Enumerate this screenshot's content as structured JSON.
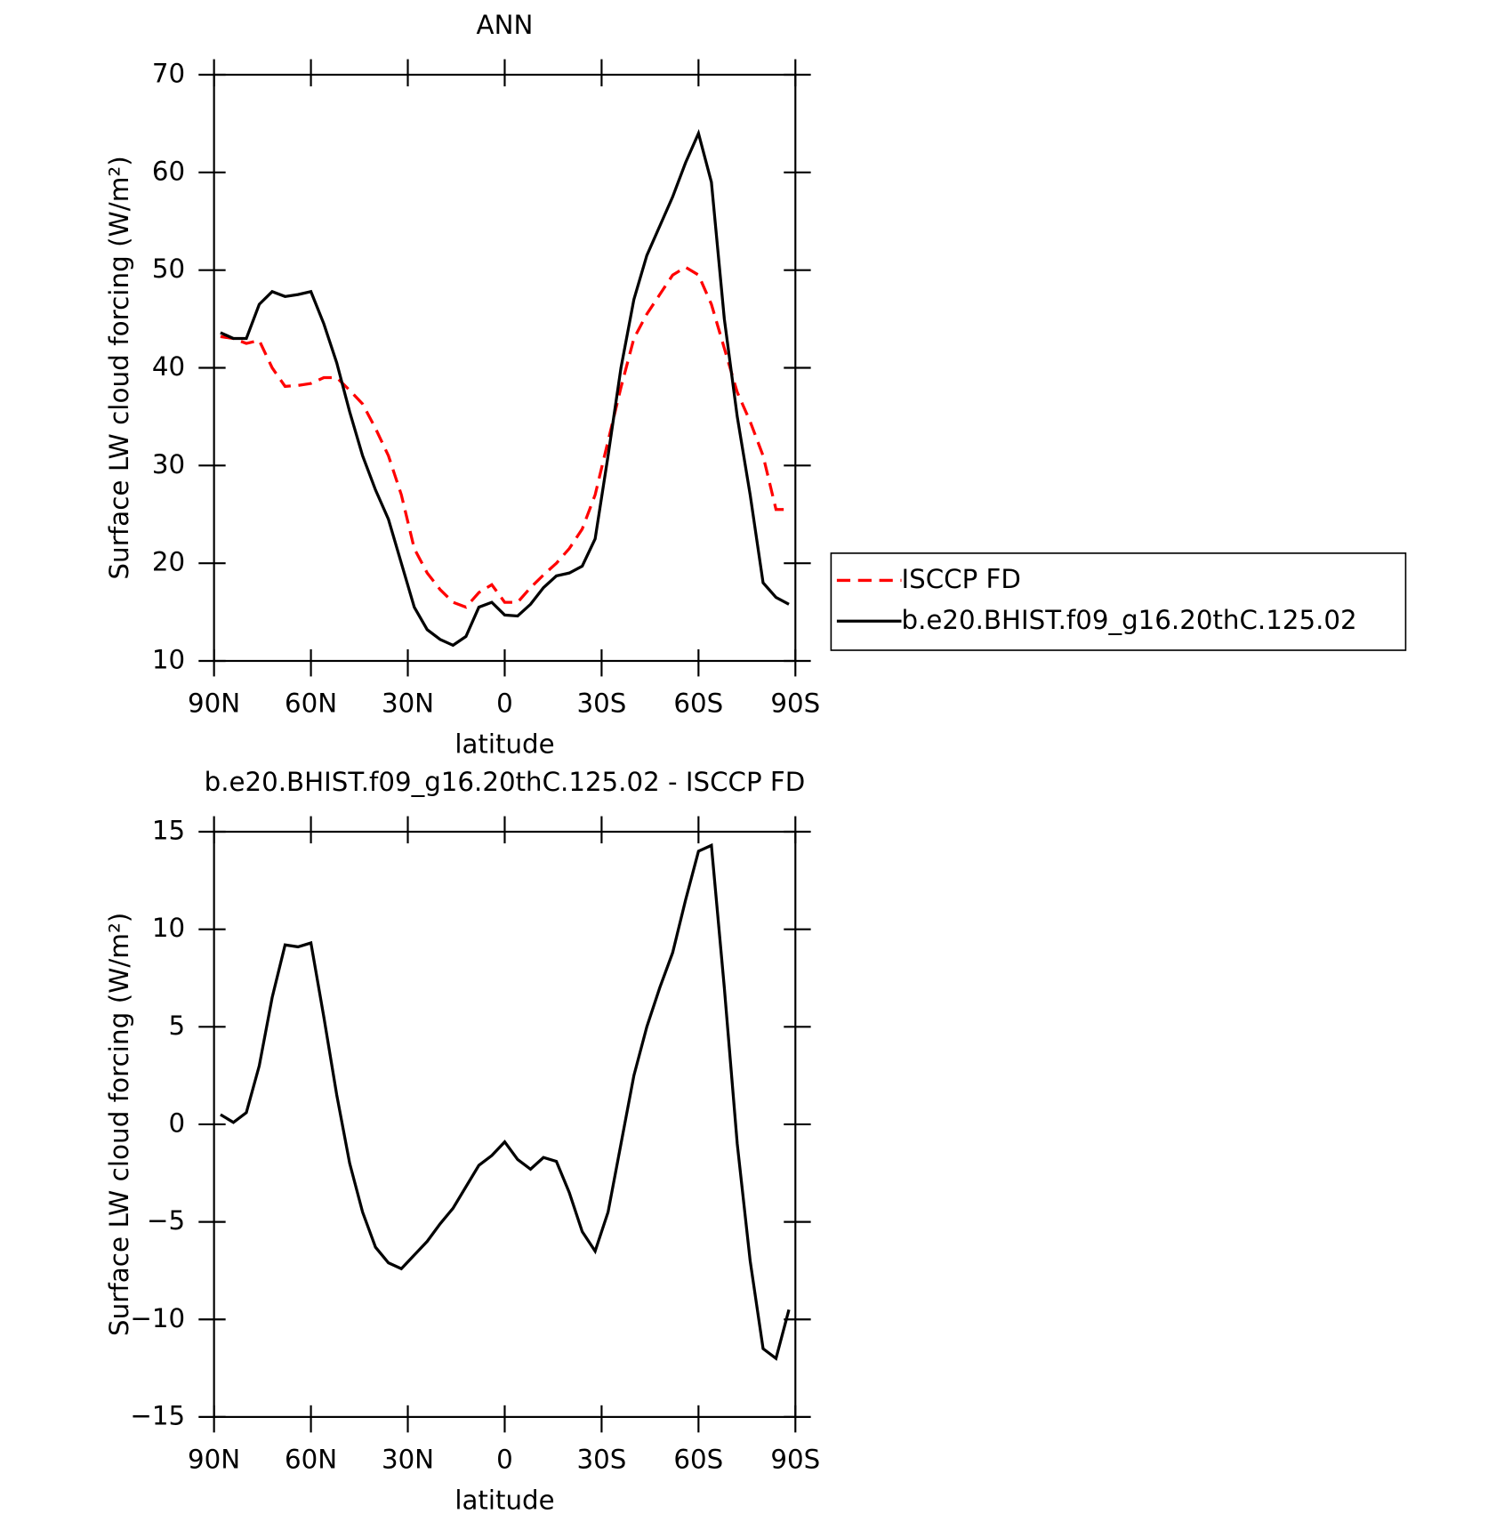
{
  "chart_data": [
    {
      "type": "line",
      "title": "ANN",
      "xlabel": "latitude",
      "ylabel": "Surface LW cloud forcing (W/m²)",
      "xlim": [
        90,
        -90
      ],
      "ylim": [
        10,
        70
      ],
      "xticks": [
        {
          "value": 90,
          "label": "90N"
        },
        {
          "value": 60,
          "label": "60N"
        },
        {
          "value": 30,
          "label": "30N"
        },
        0,
        {
          "value": -30,
          "label": "30S"
        },
        {
          "value": -60,
          "label": "60S"
        },
        {
          "value": -90,
          "label": "90S"
        }
      ],
      "yticks": [
        10,
        20,
        30,
        40,
        50,
        60,
        70
      ],
      "legend": "right",
      "x": [
        88,
        84,
        80,
        76,
        72,
        68,
        64,
        60,
        56,
        52,
        48,
        44,
        40,
        36,
        32,
        28,
        24,
        20,
        16,
        12,
        8,
        4,
        0,
        -4,
        -8,
        -12,
        -16,
        -20,
        -24,
        -28,
        -32,
        -36,
        -40,
        -44,
        -48,
        -52,
        -56,
        -60,
        -64,
        -68,
        -72,
        -76,
        -80,
        -84,
        -88
      ],
      "series": [
        {
          "name": "ISCCP FD",
          "color": "#ff0000",
          "dash": true,
          "values": [
            43.2,
            43,
            42.5,
            42.8,
            40,
            38.1,
            38.2,
            38.4,
            39,
            39,
            37.7,
            36.3,
            33.8,
            31,
            27,
            21.5,
            19,
            17.3,
            16,
            15.5,
            17,
            17.8,
            16,
            16,
            17.5,
            18.8,
            20,
            21.5,
            23.5,
            27,
            32.5,
            38,
            43,
            45.5,
            47.5,
            49.5,
            50.3,
            49.5,
            46.5,
            42,
            37.5,
            34.5,
            31,
            25.5,
            25.5
          ]
        },
        {
          "name": "b.e20.BHIST.f09_g16.20thC.125.02",
          "color": "#000000",
          "dash": false,
          "values": [
            43.6,
            43,
            43,
            46.5,
            47.8,
            47.3,
            47.5,
            47.8,
            44.5,
            40.5,
            35.5,
            31,
            27.5,
            24.5,
            20,
            15.5,
            13.2,
            12.2,
            11.6,
            12.5,
            15.5,
            16,
            14.7,
            14.6,
            15.8,
            17.5,
            18.7,
            19,
            19.7,
            22.5,
            31,
            40,
            47,
            51.5,
            54.5,
            57.5,
            61,
            64,
            59,
            45,
            35,
            27,
            18,
            16.5,
            15.8
          ]
        }
      ]
    },
    {
      "type": "line",
      "title": "b.e20.BHIST.f09_g16.20thC.125.02 - ISCCP FD",
      "xlabel": "latitude",
      "ylabel": "Surface LW cloud forcing (W/m²)",
      "xlim": [
        90,
        -90
      ],
      "ylim": [
        -15,
        15
      ],
      "xticks": [
        {
          "value": 90,
          "label": "90N"
        },
        {
          "value": 60,
          "label": "60N"
        },
        {
          "value": 30,
          "label": "30N"
        },
        0,
        {
          "value": -30,
          "label": "30S"
        },
        {
          "value": -60,
          "label": "60S"
        },
        {
          "value": -90,
          "label": "90S"
        }
      ],
      "yticks": [
        {
          "value": -15,
          "label": "−15"
        },
        {
          "value": -10,
          "label": "−10"
        },
        {
          "value": -5,
          "label": "−5"
        },
        0,
        5,
        10,
        15
      ],
      "x": [
        88,
        84,
        80,
        76,
        72,
        68,
        64,
        60,
        56,
        52,
        48,
        44,
        40,
        36,
        32,
        28,
        24,
        20,
        16,
        12,
        8,
        4,
        0,
        -4,
        -8,
        -12,
        -16,
        -20,
        -24,
        -28,
        -32,
        -36,
        -40,
        -44,
        -48,
        -52,
        -56,
        -60,
        -64,
        -68,
        -72,
        -76,
        -80,
        -84,
        -88
      ],
      "series": [
        {
          "color": "#000000",
          "dash": false,
          "values": [
            0.5,
            0.1,
            0.6,
            3,
            6.5,
            9.2,
            9.1,
            9.3,
            5.5,
            1.5,
            -2,
            -4.5,
            -6.3,
            -7.1,
            -7.4,
            -6.7,
            -6,
            -5.1,
            -4.3,
            -3.2,
            -2.1,
            -1.6,
            -0.9,
            -1.8,
            -2.3,
            -1.7,
            -1.9,
            -3.5,
            -5.5,
            -6.5,
            -4.5,
            -1,
            2.5,
            5,
            7,
            8.8,
            11.5,
            14,
            14.3,
            7,
            -1,
            -7,
            -11.5,
            -12,
            -9.5
          ]
        }
      ]
    }
  ]
}
